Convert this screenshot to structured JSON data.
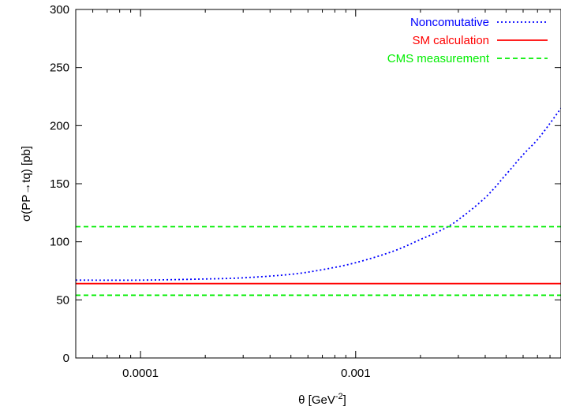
{
  "chart_data": {
    "type": "line",
    "title": "",
    "xlabel": "θ [GeV",
    "xlabel_superscript": "-2",
    "xlabel_suffix": "]",
    "ylabel": "σ(PP→tq) [pb]",
    "x_scale": "log",
    "xlim": [
      5e-05,
      0.009
    ],
    "ylim": [
      0,
      300
    ],
    "x_ticks": [
      {
        "value": 0.0001,
        "label": "0.0001"
      },
      {
        "value": 0.001,
        "label": "0.001"
      }
    ],
    "y_ticks": [
      {
        "value": 0,
        "label": "0"
      },
      {
        "value": 50,
        "label": "50"
      },
      {
        "value": 100,
        "label": "100"
      },
      {
        "value": 150,
        "label": "150"
      },
      {
        "value": 200,
        "label": "200"
      },
      {
        "value": 250,
        "label": "250"
      },
      {
        "value": 300,
        "label": "300"
      }
    ],
    "grid": false,
    "legend_position": "top-right",
    "series": [
      {
        "name": "Noncomutative",
        "color": "#0000ff",
        "style": "dotted",
        "x": [
          5e-05,
          0.0001,
          0.0002,
          0.0003,
          0.0005,
          0.0007,
          0.001,
          0.0015,
          0.002,
          0.0025,
          0.003,
          0.004,
          0.005,
          0.006,
          0.007,
          0.008,
          0.009
        ],
        "y": [
          67,
          67,
          68,
          69,
          72,
          76,
          82,
          92,
          102,
          110,
          119,
          138,
          158,
          175,
          188,
          202,
          215
        ]
      },
      {
        "name": "SM calculation",
        "color": "#ff0000",
        "style": "solid",
        "x": [
          5e-05,
          0.009
        ],
        "y": [
          64,
          64
        ]
      },
      {
        "name": "CMS measurement",
        "color": "#00ee00",
        "style": "dashed",
        "x": [
          5e-05,
          0.009
        ],
        "y": [
          113,
          113
        ],
        "band_lower": [
          54,
          54
        ]
      }
    ]
  }
}
